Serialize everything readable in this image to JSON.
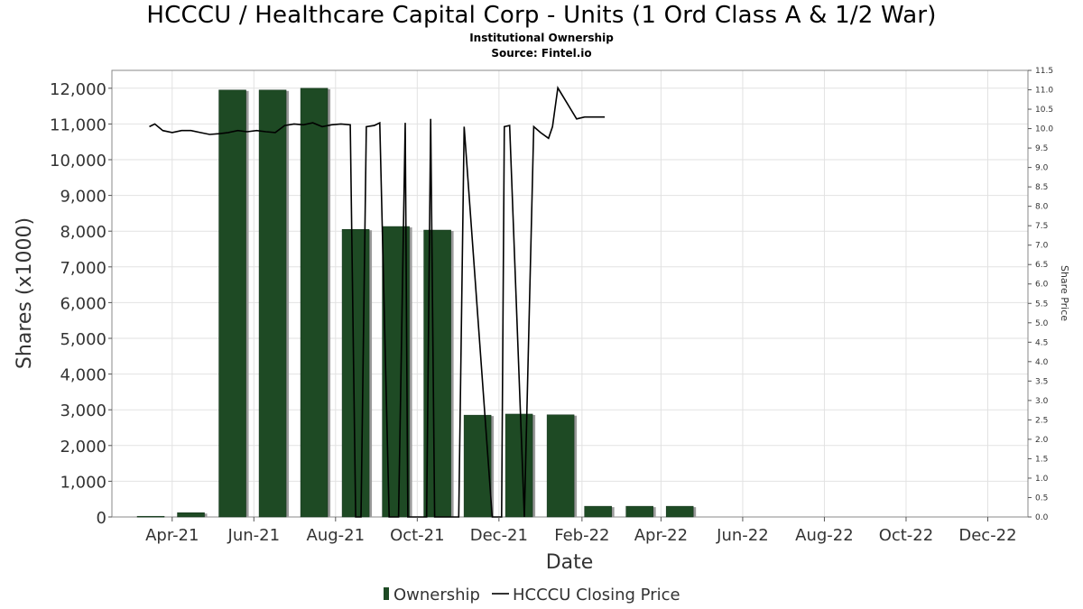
{
  "title": "HCCCU / Healthcare Capital Corp - Units (1 Ord Class A & 1/2 War)",
  "subtitle": "Institutional Ownership",
  "source": "Source: Fintel.io",
  "colors": {
    "bar": "#1e4a24",
    "bar_shadow": "#9a9a9a",
    "line": "#000000",
    "grid": "#e2e2e2"
  },
  "chart_data": {
    "type": "bar",
    "xlabel": "Date",
    "ylabel": "Shares (x1000)",
    "y2label": "Share Price",
    "ylim": [
      0,
      12500
    ],
    "y2lim": [
      0,
      11.5
    ],
    "yticks": [
      0,
      1000,
      2000,
      3000,
      4000,
      5000,
      6000,
      7000,
      8000,
      9000,
      10000,
      11000,
      12000
    ],
    "ytick_labels": [
      "0",
      "1,000",
      "2,000",
      "3,000",
      "4,000",
      "5,000",
      "6,000",
      "7,000",
      "8,000",
      "9,000",
      "10,000",
      "11,000",
      "12,000"
    ],
    "y2ticks": [
      "0.0",
      "0.5",
      "1.0",
      "1.5",
      "2.0",
      "2.5",
      "3.0",
      "3.5",
      "4.0",
      "4.5",
      "5.0",
      "5.5",
      "6.0",
      "6.5",
      "7.0",
      "7.5",
      "8.0",
      "8.5",
      "9.0",
      "9.5",
      "10.0",
      "10.5",
      "11.0",
      "11.5"
    ],
    "x_range": [
      "2021-02-15",
      "2022-12-31"
    ],
    "xticks": [
      {
        "date": "2021-04-01",
        "label": "Apr-21"
      },
      {
        "date": "2021-06-01",
        "label": "Jun-21"
      },
      {
        "date": "2021-08-01",
        "label": "Aug-21"
      },
      {
        "date": "2021-10-01",
        "label": "Oct-21"
      },
      {
        "date": "2021-12-01",
        "label": "Dec-21"
      },
      {
        "date": "2022-02-01",
        "label": "Feb-22"
      },
      {
        "date": "2022-04-01",
        "label": "Apr-22"
      },
      {
        "date": "2022-06-01",
        "label": "Jun-22"
      },
      {
        "date": "2022-08-01",
        "label": "Aug-22"
      },
      {
        "date": "2022-10-01",
        "label": "Oct-22"
      },
      {
        "date": "2022-12-01",
        "label": "Dec-22"
      }
    ],
    "grid": true,
    "legend_position": "bottom-center",
    "series": [
      {
        "name": "Ownership",
        "type": "bar",
        "dates": [
          "2021-03-31",
          "2021-04-30",
          "2021-05-31",
          "2021-06-30",
          "2021-07-31",
          "2021-08-31",
          "2021-09-30",
          "2021-10-31",
          "2021-11-30",
          "2021-12-31",
          "2022-01-31",
          "2022-02-28",
          "2022-03-31",
          "2022-04-30"
        ],
        "values": [
          20,
          120,
          11950,
          11950,
          12000,
          8050,
          8130,
          8030,
          2850,
          2880,
          2860,
          300,
          300,
          300
        ]
      },
      {
        "name": "HCCCU Closing Price",
        "type": "line",
        "dates": [
          "2021-03-15",
          "2021-03-19",
          "2021-03-25",
          "2021-04-01",
          "2021-04-08",
          "2021-04-15",
          "2021-04-22",
          "2021-04-29",
          "2021-05-06",
          "2021-05-13",
          "2021-05-20",
          "2021-05-27",
          "2021-06-03",
          "2021-06-10",
          "2021-06-17",
          "2021-06-24",
          "2021-07-01",
          "2021-07-08",
          "2021-07-15",
          "2021-07-22",
          "2021-07-29",
          "2021-08-05",
          "2021-08-12",
          "2021-08-16",
          "2021-08-20",
          "2021-08-24",
          "2021-08-30",
          "2021-09-03",
          "2021-09-10",
          "2021-09-17",
          "2021-09-22",
          "2021-09-24",
          "2021-10-08",
          "2021-10-11",
          "2021-10-14",
          "2021-10-22",
          "2021-10-28",
          "2021-11-01",
          "2021-11-05",
          "2021-11-26",
          "2021-12-03",
          "2021-12-05",
          "2021-12-09",
          "2021-12-20",
          "2021-12-27",
          "2022-01-01",
          "2022-01-07",
          "2022-01-10",
          "2022-01-14",
          "2022-01-21",
          "2022-01-28",
          "2022-02-03",
          "2022-02-11",
          "2022-02-18"
        ],
        "values": [
          10.05,
          10.12,
          9.95,
          9.9,
          9.95,
          9.95,
          9.9,
          9.85,
          9.87,
          9.9,
          9.95,
          9.92,
          9.95,
          9.92,
          9.9,
          10.08,
          10.12,
          10.1,
          10.15,
          10.05,
          10.1,
          10.12,
          10.1,
          0.0,
          0.0,
          10.05,
          10.08,
          10.15,
          0.0,
          0.0,
          10.15,
          0.0,
          0.0,
          10.25,
          0.0,
          0.0,
          0.0,
          0.0,
          10.05,
          0.0,
          0.0,
          10.05,
          10.08,
          0.0,
          10.05,
          9.9,
          9.75,
          10.05,
          11.05,
          10.65,
          10.25,
          10.3,
          10.3,
          10.3
        ]
      }
    ]
  }
}
